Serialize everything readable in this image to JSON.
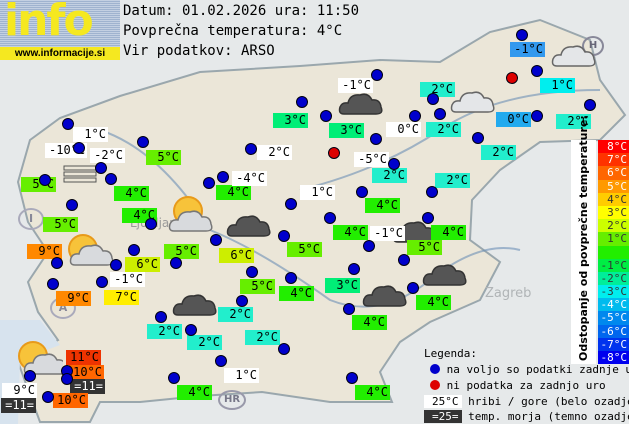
{
  "logo": {
    "word": "info",
    "url": "www.informacije.si"
  },
  "header": {
    "date_line": "Datum: 01.02.2026 ura: 11:50",
    "avg_line": "Povprečna temperatura: 4°C",
    "source_line": "Vir podatkov: ARSO"
  },
  "colors": {
    "white": "#ffffff",
    "11": "#ee3300",
    "10": "#ff6600",
    "9": "#ff8800",
    "7": "#ffee00",
    "6": "#ccee00",
    "5": "#66ee00",
    "4": "#22ee00",
    "3": "#00ee77",
    "2": "#22eecc",
    "1": "#00eeee",
    "0": "#22aaee",
    "-1": "#3399ee",
    "sea": "#333333"
  },
  "stations": [
    {
      "t": "1°C",
      "c": "white"
    },
    {
      "t": "-10°C",
      "c": "white"
    },
    {
      "t": "-2°C",
      "c": "white"
    },
    {
      "t": "5°C",
      "c": "5"
    },
    {
      "t": "4°C",
      "c": "4"
    },
    {
      "t": "5°C",
      "c": "5"
    },
    {
      "t": "5°C",
      "c": "5"
    },
    {
      "t": "4°C",
      "c": "4"
    },
    {
      "t": "4°C",
      "c": "4"
    },
    {
      "t": "-4°C",
      "c": "white"
    },
    {
      "t": "2°C",
      "c": "white"
    },
    {
      "t": "3°C",
      "c": "3"
    },
    {
      "t": "3°C",
      "c": "3"
    },
    {
      "t": "-1°C",
      "c": "white"
    },
    {
      "t": "-5°C",
      "c": "white"
    },
    {
      "t": "0°C",
      "c": "white"
    },
    {
      "t": "2°C",
      "c": "2"
    },
    {
      "t": "2°C",
      "c": "2"
    },
    {
      "t": "2°C",
      "c": "2"
    },
    {
      "t": "2°C",
      "c": "2"
    },
    {
      "t": "2°C",
      "c": "2"
    },
    {
      "t": "-1°C",
      "c": "-1"
    },
    {
      "t": "1°C",
      "c": "1"
    },
    {
      "t": "0°C",
      "c": "0"
    },
    {
      "t": "2°C",
      "c": "2"
    },
    {
      "t": "1°C",
      "c": "white"
    },
    {
      "t": "4°C",
      "c": "4"
    },
    {
      "t": "4°C",
      "c": "4"
    },
    {
      "t": "-1°C",
      "c": "white"
    },
    {
      "t": "4°C",
      "c": "4"
    },
    {
      "t": "5°C",
      "c": "5"
    },
    {
      "t": "5°C",
      "c": "5"
    },
    {
      "t": "6°C",
      "c": "6"
    },
    {
      "t": "5°C",
      "c": "5"
    },
    {
      "t": "4°C",
      "c": "4"
    },
    {
      "t": "3°C",
      "c": "3"
    },
    {
      "t": "4°C",
      "c": "4"
    },
    {
      "t": "4°C",
      "c": "4"
    },
    {
      "t": "2°C",
      "c": "2"
    },
    {
      "t": "2°C",
      "c": "2"
    },
    {
      "t": "1°C",
      "c": "white"
    },
    {
      "t": "4°C",
      "c": "4"
    },
    {
      "t": "4°C",
      "c": "4"
    },
    {
      "t": "9°C",
      "c": "9"
    },
    {
      "t": "9°C",
      "c": "9"
    },
    {
      "t": "6°C",
      "c": "6"
    },
    {
      "t": "-1°C",
      "c": "white"
    },
    {
      "t": "7°C",
      "c": "7"
    },
    {
      "t": "5°C",
      "c": "5"
    },
    {
      "t": "2°C",
      "c": "2"
    },
    {
      "t": "2°C",
      "c": "2"
    },
    {
      "t": "11°C",
      "c": "11"
    },
    {
      "t": "10°C",
      "c": "10"
    },
    {
      "t": "=11=",
      "c": "sea"
    },
    {
      "t": "9°C",
      "c": "white"
    },
    {
      "t": "=11=",
      "c": "sea"
    },
    {
      "t": "10°C",
      "c": "10"
    }
  ],
  "no_data_stations": 2,
  "map_labels": {
    "austria": "A",
    "hungary": "H",
    "croatia": "HR",
    "ljubljana": "Ljubljana",
    "zagreb": "Zagreb"
  },
  "scale": {
    "title": "Odstopanje od povprečne temperature:",
    "items": [
      {
        "t": "8°C",
        "c": "#ff0000"
      },
      {
        "t": "7°C",
        "c": "#ff3300"
      },
      {
        "t": "6°C",
        "c": "#ff6600"
      },
      {
        "t": "5°C",
        "c": "#ff9900"
      },
      {
        "t": "4°C",
        "c": "#ffcc00"
      },
      {
        "t": "3°C",
        "c": "#ffff00"
      },
      {
        "t": "2°C",
        "c": "#ccff00"
      },
      {
        "t": "1°C",
        "c": "#66ee00"
      },
      {
        "t": "",
        "c": "#22ee00"
      },
      {
        "t": "-1°C",
        "c": "#00ee44"
      },
      {
        "t": "-2°C",
        "c": "#00ee99"
      },
      {
        "t": "-3°C",
        "c": "#00eeee"
      },
      {
        "t": "-4°C",
        "c": "#00bbee"
      },
      {
        "t": "-5°C",
        "c": "#0088ee"
      },
      {
        "t": "-6°C",
        "c": "#0066ee"
      },
      {
        "t": "-7°C",
        "c": "#0033ee"
      },
      {
        "t": "-8°C",
        "c": "#0000ee"
      }
    ]
  },
  "legend": {
    "title": "Legenda:",
    "blue_dot": "na voljo so podatki zadnje ure",
    "red_dot": "ni podatka za zadnjo uro",
    "mountain_sample": "25°C",
    "mountain_text": "hribi / gore (belo ozadje)",
    "sea_sample": "=25=",
    "sea_text": "temp. morja (temno ozadje)"
  }
}
